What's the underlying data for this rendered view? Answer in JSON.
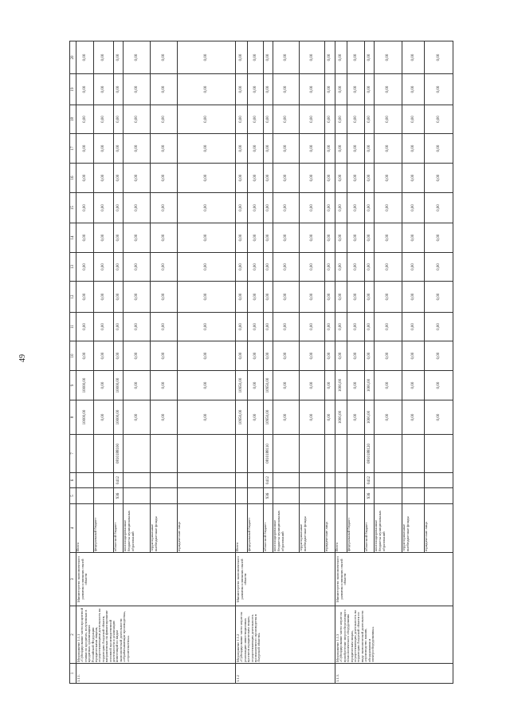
{
  "page_number": "49",
  "header": [
    "1",
    "2",
    "3",
    "4",
    "5",
    "6",
    "7",
    "8",
    "9",
    "10",
    "11",
    "12",
    "13",
    "14",
    "15",
    "16",
    "17",
    "18",
    "19",
    "20"
  ],
  "sections": [
    {
      "number": "1.1.1.",
      "title": "Мероприятие 1.1.1 «Субсидирование части процентной ставки по кредитам, полученным в кредитных организациях Российской Федерации юридическими лицами, осуществляющими деятельность на территории Амурской области, направленным на финансирование основной производственной деятельности и реализацию инвестиций по видам экономической деятельности «обрабатывающие производства», «строительство»»",
      "executor": "Министерство экономического развития и внешних связей области",
      "rows": [
        {
          "source": "Всего",
          "kbk": [
            "",
            "",
            ""
          ],
          "values": [
            "10000,00",
            "10000,00",
            "0,00",
            "0,00",
            "0,00",
            "0,00",
            "0,00",
            "0,00",
            "0,00",
            "0,00",
            "0,00",
            "0,00",
            "0,00"
          ]
        },
        {
          "source": "федеральный бюджет",
          "kbk": [
            "",
            "",
            ""
          ],
          "values": [
            "0,00",
            "0,00",
            "0,00",
            "0,00",
            "0,00",
            "0,00",
            "0,00",
            "0,00",
            "0,00",
            "0,00",
            "0,00",
            "0,00",
            "0,00"
          ]
        },
        {
          "source": "областной бюджет",
          "kbk": [
            "936",
            "0412",
            "0810188100"
          ],
          "values": [
            "10000,00",
            "10000,00",
            "0,00",
            "0,00",
            "0,00",
            "0,00",
            "0,00",
            "0,00",
            "0,00",
            "0,00",
            "0,00",
            "0,00",
            "0,00"
          ]
        },
        {
          "source": "консолидированные бюджеты муниципальных образований",
          "kbk": [
            "",
            "",
            ""
          ],
          "values": [
            "0,00",
            "0,00",
            "0,00",
            "0,00",
            "0,00",
            "0,00",
            "0,00",
            "0,00",
            "0,00",
            "0,00",
            "0,00",
            "0,00",
            "0,00"
          ]
        },
        {
          "source": "территориальные внебюджетные фонды",
          "kbk": [
            "",
            "",
            ""
          ],
          "values": [
            "0,00",
            "0,00",
            "0,00",
            "0,00",
            "0,00",
            "0,00",
            "0,00",
            "0,00",
            "0,00",
            "0,00",
            "0,00",
            "0,00",
            "0,00"
          ]
        },
        {
          "source": "юридические лица",
          "kbk": [
            "",
            "",
            ""
          ],
          "values": [
            "0,00",
            "0,00",
            "0,00",
            "0,00",
            "0,00",
            "0,00",
            "0,00",
            "0,00",
            "0,00",
            "0,00",
            "0,00",
            "0,00",
            "0,00"
          ]
        }
      ]
    },
    {
      "number": "1.1.2",
      "title": "Мероприятие 1.1.2 «Субсидирование части затрат на реализацию инвестиционных проектов юридическим лицам, осуществляющим деятельность промышленного производства в Амурской области»",
      "executor": "Министерство экономического развития и внешних связей области",
      "rows": [
        {
          "source": "Всего",
          "kbk": [
            "",
            "",
            ""
          ],
          "values": [
            "10950,00",
            "10950,00",
            "0,00",
            "0,00",
            "0,00",
            "0,00",
            "0,00",
            "0,00",
            "0,00",
            "0,00",
            "0,00",
            "0,00",
            "0,00"
          ]
        },
        {
          "source": "федеральный бюджет",
          "kbk": [
            "",
            "",
            ""
          ],
          "values": [
            "0,00",
            "0,00",
            "0,00",
            "0,00",
            "0,00",
            "0,00",
            "0,00",
            "0,00",
            "0,00",
            "0,00",
            "0,00",
            "0,00",
            "0,00"
          ]
        },
        {
          "source": "областной бюджет",
          "kbk": [
            "936",
            "0412",
            "0810188110"
          ],
          "values": [
            "10950,00",
            "10950,00",
            "0,00",
            "0,00",
            "0,00",
            "0,00",
            "0,00",
            "0,00",
            "0,00",
            "0,00",
            "0,00",
            "0,00",
            "0,00"
          ]
        },
        {
          "source": "консолидированные бюджеты муниципальных образований",
          "kbk": [
            "",
            "",
            ""
          ],
          "values": [
            "0,00",
            "0,00",
            "0,00",
            "0,00",
            "0,00",
            "0,00",
            "0,00",
            "0,00",
            "0,00",
            "0,00",
            "0,00",
            "0,00",
            "0,00"
          ]
        },
        {
          "source": "территориальные внебюджетные фонды",
          "kbk": [
            "",
            "",
            ""
          ],
          "values": [
            "0,00",
            "0,00",
            "0,00",
            "0,00",
            "0,00",
            "0,00",
            "0,00",
            "0,00",
            "0,00",
            "0,00",
            "0,00",
            "0,00",
            "0,00"
          ]
        },
        {
          "source": "юридические лица",
          "kbk": [
            "",
            "",
            ""
          ],
          "values": [
            "0,00",
            "0,00",
            "0,00",
            "0,00",
            "0,00",
            "0,00",
            "0,00",
            "0,00",
            "0,00",
            "0,00",
            "0,00",
            "0,00",
            "0,00"
          ]
        }
      ]
    },
    {
      "number": "1.1.3.",
      "title": "Мероприятие 1.1.3 «Субсидирование части затрат на приобретение энергосберегающего технологического оборудования юридическим лицам, осуществляющим деятельность на территории Амурской области по виду экономической деятельности «производство машин, оборудования и электрооборудования»»",
      "executor": "Министерство экономического развития и внешних связей области",
      "rows": [
        {
          "source": "Всего",
          "kbk": [
            "",
            "",
            ""
          ],
          "values": [
            "1000,00",
            "1000,00",
            "0,00",
            "0,00",
            "0,00",
            "0,00",
            "0,00",
            "0,00",
            "0,00",
            "0,00",
            "0,00",
            "0,00",
            "0,00"
          ]
        },
        {
          "source": "федеральный бюджет",
          "kbk": [
            "",
            "",
            ""
          ],
          "values": [
            "0,00",
            "0,00",
            "0,00",
            "0,00",
            "0,00",
            "0,00",
            "0,00",
            "0,00",
            "0,00",
            "0,00",
            "0,00",
            "0,00",
            "0,00"
          ]
        },
        {
          "source": "областной бюджет",
          "kbk": [
            "936",
            "0412",
            "0810188120"
          ],
          "values": [
            "1000,00",
            "1000,00",
            "0,00",
            "0,00",
            "0,00",
            "0,00",
            "0,00",
            "0,00",
            "0,00",
            "0,00",
            "0,00",
            "0,00",
            "0,00"
          ]
        },
        {
          "source": "консолидированные бюджеты муниципальных образований",
          "kbk": [
            "",
            "",
            ""
          ],
          "values": [
            "0,00",
            "0,00",
            "0,00",
            "0,00",
            "0,00",
            "0,00",
            "0,00",
            "0,00",
            "0,00",
            "0,00",
            "0,00",
            "0,00",
            "0,00"
          ]
        },
        {
          "source": "территориальные внебюджетные фонды",
          "kbk": [
            "",
            "",
            ""
          ],
          "values": [
            "0,00",
            "0,00",
            "0,00",
            "0,00",
            "0,00",
            "0,00",
            "0,00",
            "0,00",
            "0,00",
            "0,00",
            "0,00",
            "0,00",
            "0,00"
          ]
        },
        {
          "source": "юридические лица",
          "kbk": [
            "",
            "",
            ""
          ],
          "values": [
            "0,00",
            "0,00",
            "0,00",
            "0,00",
            "0,00",
            "0,00",
            "0,00",
            "0,00",
            "0,00",
            "0,00",
            "0,00",
            "0,00",
            "0,00"
          ]
        }
      ]
    }
  ]
}
